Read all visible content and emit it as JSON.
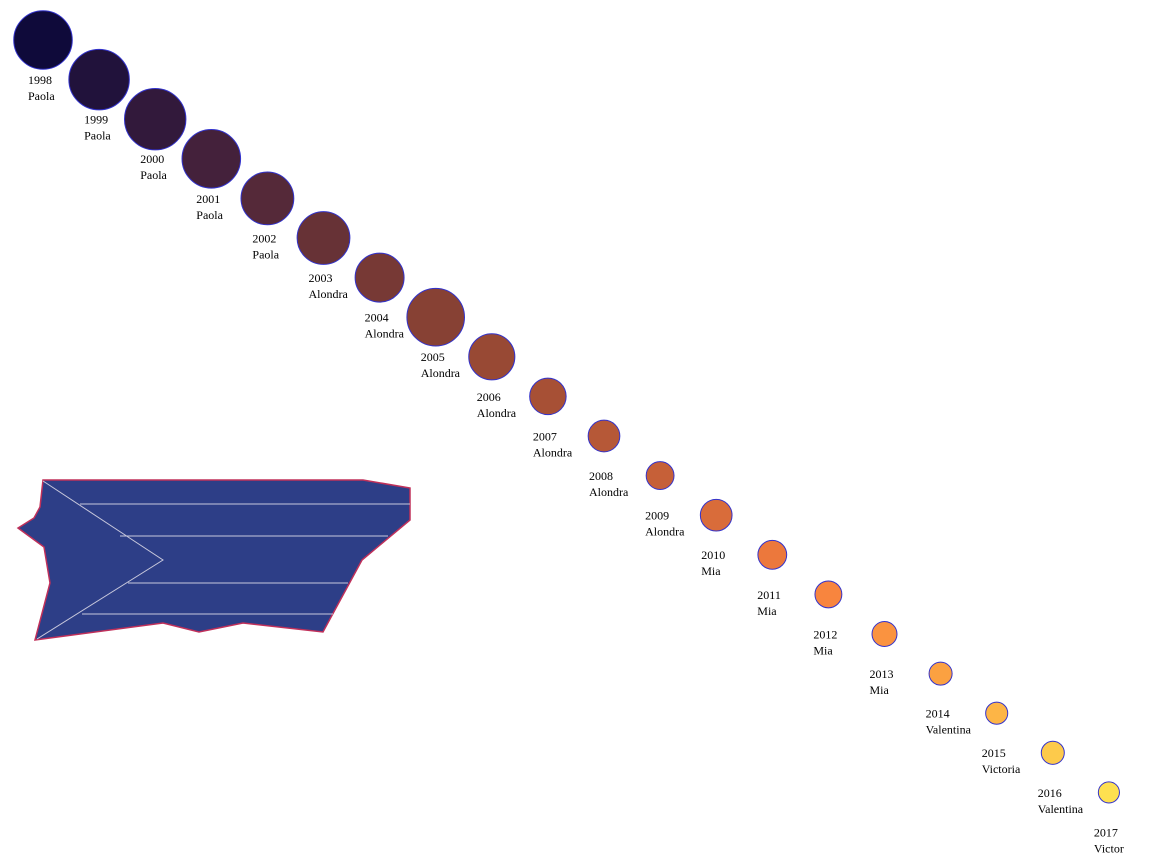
{
  "chart_data": {
    "type": "scatter",
    "title": "",
    "xlabel": "",
    "ylabel": "",
    "x_label_key": "year",
    "series": [
      {
        "points": [
          {
            "year": "1998",
            "name": "Paola",
            "relative_size": 0.61
          },
          {
            "year": "1999",
            "name": "Paola",
            "relative_size": 0.63
          },
          {
            "year": "2000",
            "name": "Paola",
            "relative_size": 0.64
          },
          {
            "year": "2001",
            "name": "Paola",
            "relative_size": 0.61
          },
          {
            "year": "2002",
            "name": "Paola",
            "relative_size": 0.55
          },
          {
            "year": "2003",
            "name": "Alondra",
            "relative_size": 0.55
          },
          {
            "year": "2004",
            "name": "Alondra",
            "relative_size": 0.51
          },
          {
            "year": "2005",
            "name": "Alondra",
            "relative_size": 0.6
          },
          {
            "year": "2006",
            "name": "Alondra",
            "relative_size": 0.48
          },
          {
            "year": "2007",
            "name": "Alondra",
            "relative_size": 0.38
          },
          {
            "year": "2008",
            "name": "Alondra",
            "relative_size": 0.33
          },
          {
            "year": "2009",
            "name": "Alondra",
            "relative_size": 0.29
          },
          {
            "year": "2010",
            "name": "Mia",
            "relative_size": 0.33
          },
          {
            "year": "2011",
            "name": "Mia",
            "relative_size": 0.3
          },
          {
            "year": "2012",
            "name": "Mia",
            "relative_size": 0.28
          },
          {
            "year": "2013",
            "name": "Mia",
            "relative_size": 0.26
          },
          {
            "year": "2014",
            "name": "Valentina",
            "relative_size": 0.24
          },
          {
            "year": "2015",
            "name": "Victoria",
            "relative_size": 0.23
          },
          {
            "year": "2016",
            "name": "Valentina",
            "relative_size": 0.24
          },
          {
            "year": "2017",
            "name": "Victor",
            "relative_size": 0.22
          }
        ]
      }
    ],
    "color_scale": [
      "#0f0a3a",
      "#3f1f3c",
      "#6e3535",
      "#9a4a34",
      "#c35e38",
      "#f77f3d",
      "#fca542",
      "#fee050"
    ],
    "marker_stroke": "#3333cc"
  },
  "flag": {
    "fill": "#2d3e87",
    "outline": "#c0305a",
    "stripe_color": "#c8c8dc",
    "icon": "puerto-rico-flag-map-icon"
  }
}
